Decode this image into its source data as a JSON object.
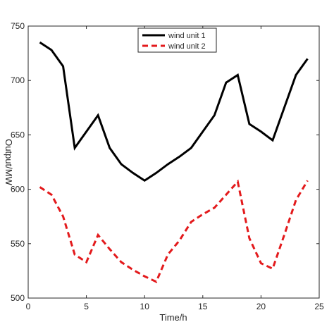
{
  "chart_data": {
    "type": "line",
    "x_label": "Time/h",
    "y_label": "Output/MW",
    "x": [
      1,
      2,
      3,
      4,
      5,
      6,
      7,
      8,
      9,
      10,
      11,
      12,
      13,
      14,
      15,
      16,
      17,
      18,
      19,
      20,
      21,
      22,
      23,
      24
    ],
    "series": [
      {
        "name": "wind unit 1",
        "color": "#000000",
        "dash": "solid",
        "values": [
          735,
          728,
          713,
          638,
          653,
          668,
          638,
          623,
          615,
          608,
          615,
          623,
          630,
          638,
          653,
          668,
          698,
          705,
          660,
          653,
          645,
          675,
          705,
          720
        ]
      },
      {
        "name": "wind unit 2",
        "color": "#e31a1c",
        "dash": "dashed",
        "values": [
          602,
          595,
          575,
          540,
          533,
          558,
          545,
          533,
          526,
          520,
          515,
          540,
          553,
          570,
          577,
          583,
          595,
          607,
          555,
          532,
          527,
          558,
          590,
          608
        ]
      }
    ],
    "xlim": [
      0,
      25
    ],
    "xticks": [
      0,
      5,
      10,
      15,
      20,
      25
    ],
    "ylim": [
      500,
      750
    ],
    "yticks": [
      500,
      550,
      600,
      650,
      700,
      750
    ],
    "grid": false,
    "legend": "top"
  }
}
